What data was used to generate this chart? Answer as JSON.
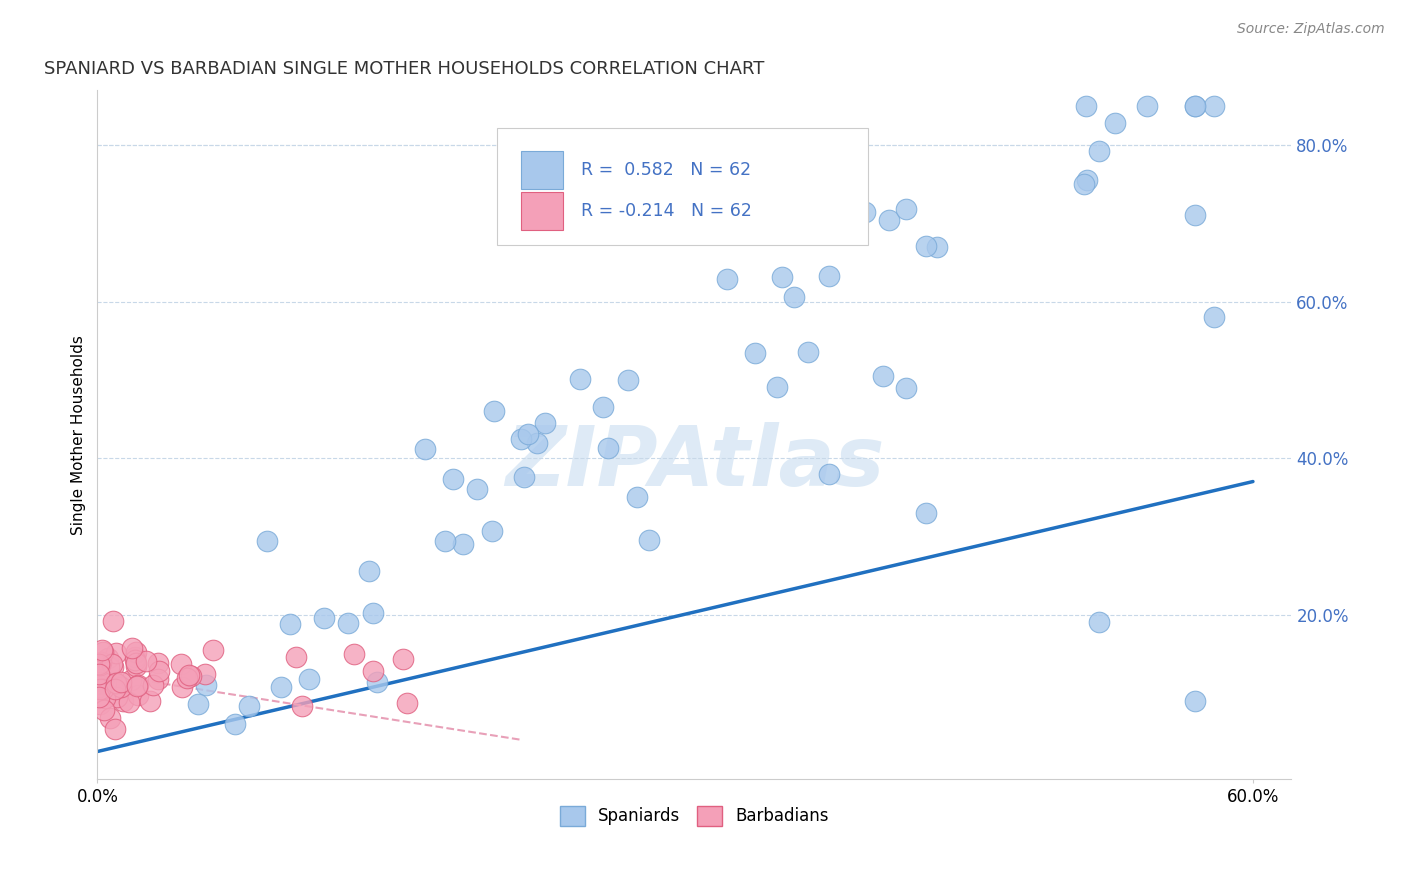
{
  "title": "SPANIARD VS BARBADIAN SINGLE MOTHER HOUSEHOLDS CORRELATION CHART",
  "source": "Source: ZipAtlas.com",
  "ylabel": "Single Mother Households",
  "xlim": [
    0.0,
    0.62
  ],
  "ylim": [
    -0.01,
    0.87
  ],
  "spaniard_color": "#A8C8EC",
  "barbadian_color": "#F4A0B8",
  "spaniard_edge_color": "#7AAAD8",
  "barbadian_edge_color": "#E06080",
  "trend_blue": "#2070C0",
  "trend_pink": "#E8A0B8",
  "legend_r_blue": "0.582",
  "legend_r_pink": "-0.214",
  "legend_n": "62",
  "watermark": "ZIPAtlas",
  "text_color_blue": "#4472C4",
  "ytick_color": "#4472C4"
}
